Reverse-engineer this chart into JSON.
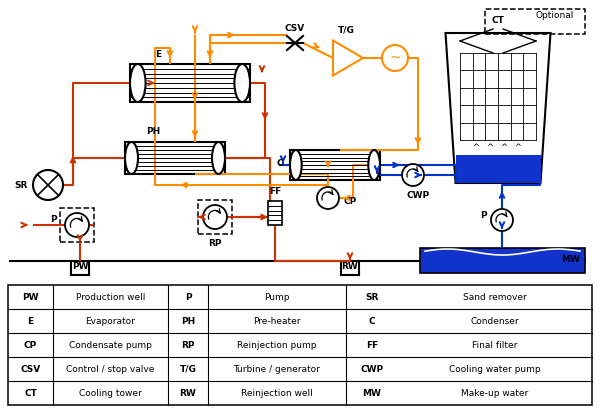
{
  "colors": {
    "orange": "#FF8C00",
    "red_orange": "#CC3300",
    "blue": "#0033CC",
    "black": "#000000",
    "blue_fill": "#1133CC"
  },
  "legend_rows": [
    [
      "PW",
      "Production well",
      "P",
      "Pump",
      "SR",
      "Sand remover"
    ],
    [
      "E",
      "Evaporator",
      "PH",
      "Pre-heater",
      "C",
      "Condenser"
    ],
    [
      "CP",
      "Condensate pump",
      "RP",
      "Reinjection pump",
      "FF",
      "Final filter"
    ],
    [
      "CSV",
      "Control / stop valve",
      "T/G",
      "Turbine / generator",
      "CWP",
      "Cooling water pump"
    ],
    [
      "CT",
      "Cooling tower",
      "RW",
      "Reinjection well",
      "MW",
      "Make-up water"
    ]
  ]
}
